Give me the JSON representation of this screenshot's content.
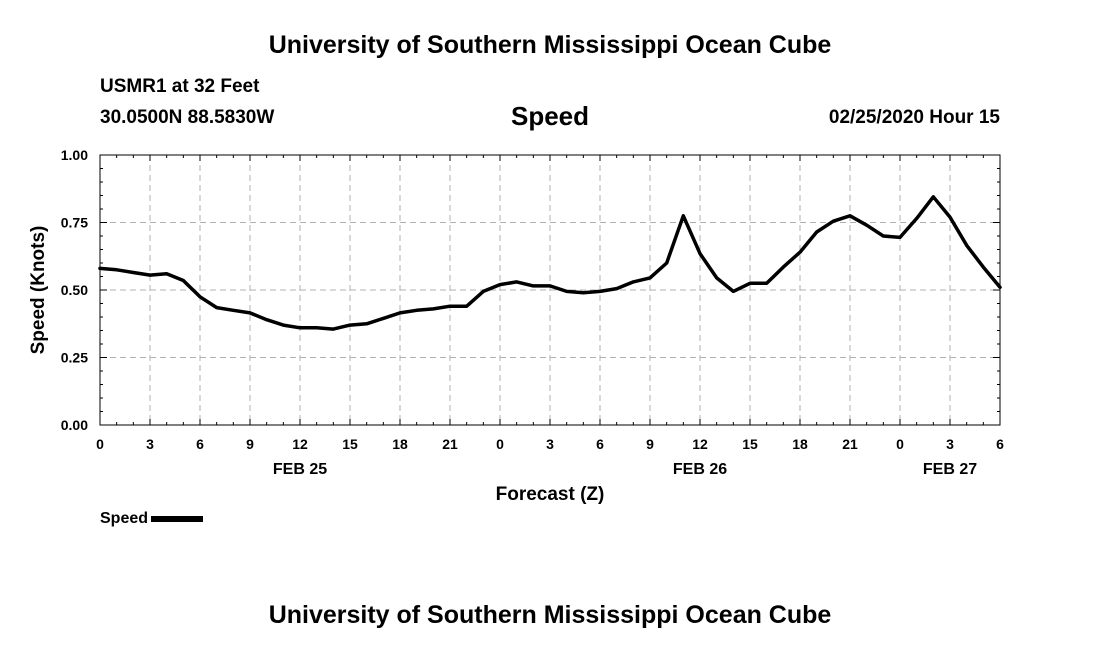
{
  "header": {
    "title_top": "University of Southern Mississippi Ocean Cube",
    "station": "USMR1 at 32 Feet",
    "location": "30.0500N 88.5830W",
    "variable": "Speed",
    "datetime": "02/25/2020 Hour 15",
    "title_bottom": "University of Southern Mississippi Ocean Cube"
  },
  "legend": {
    "label": "Speed"
  },
  "chart_data": {
    "type": "line",
    "title": "Speed",
    "xlabel": "Forecast (Z)",
    "ylabel": "Speed (Knots)",
    "ylim": [
      0,
      1
    ],
    "xlim": [
      0,
      54
    ],
    "yticks": [
      "0.00",
      "0.25",
      "0.50",
      "0.75",
      "1.00"
    ],
    "xticks": [
      "0",
      "3",
      "6",
      "9",
      "12",
      "15",
      "18",
      "21",
      "0",
      "3",
      "6",
      "9",
      "12",
      "15",
      "18",
      "21",
      "0",
      "3",
      "6"
    ],
    "day_labels": [
      "FEB 25",
      "FEB 26",
      "FEB 27"
    ],
    "grid": true,
    "series": [
      {
        "name": "Speed",
        "color": "#000000",
        "x": [
          0,
          1,
          2,
          3,
          4,
          5,
          6,
          7,
          8,
          9,
          10,
          11,
          12,
          13,
          14,
          15,
          16,
          17,
          18,
          19,
          20,
          21,
          22,
          23,
          24,
          25,
          26,
          27,
          28,
          29,
          30,
          31,
          32,
          33,
          34,
          35,
          36,
          37,
          38,
          39,
          40,
          41,
          42,
          43,
          44,
          45,
          46,
          47,
          48,
          49,
          50,
          51,
          52,
          53,
          54
        ],
        "values": [
          0.58,
          0.575,
          0.565,
          0.555,
          0.56,
          0.535,
          0.475,
          0.435,
          0.425,
          0.415,
          0.39,
          0.37,
          0.36,
          0.36,
          0.355,
          0.37,
          0.375,
          0.395,
          0.415,
          0.425,
          0.43,
          0.44,
          0.44,
          0.495,
          0.52,
          0.53,
          0.515,
          0.515,
          0.495,
          0.49,
          0.495,
          0.505,
          0.53,
          0.545,
          0.6,
          0.775,
          0.635,
          0.545,
          0.495,
          0.525,
          0.525,
          0.585,
          0.64,
          0.715,
          0.755,
          0.775,
          0.74,
          0.7,
          0.695,
          0.765,
          0.845,
          0.77,
          0.665,
          0.585,
          0.51
        ]
      }
    ]
  }
}
